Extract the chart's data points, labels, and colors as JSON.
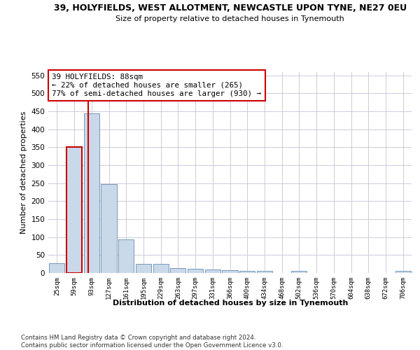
{
  "title1": "39, HOLYFIELDS, WEST ALLOTMENT, NEWCASTLE UPON TYNE, NE27 0EU",
  "title2": "Size of property relative to detached houses in Tynemouth",
  "xlabel": "Distribution of detached houses by size in Tynemouth",
  "ylabel": "Number of detached properties",
  "categories": [
    "25sqm",
    "59sqm",
    "93sqm",
    "127sqm",
    "161sqm",
    "195sqm",
    "229sqm",
    "263sqm",
    "297sqm",
    "331sqm",
    "366sqm",
    "400sqm",
    "434sqm",
    "468sqm",
    "502sqm",
    "536sqm",
    "570sqm",
    "604sqm",
    "638sqm",
    "672sqm",
    "706sqm"
  ],
  "values": [
    28,
    350,
    445,
    248,
    93,
    25,
    25,
    13,
    12,
    10,
    8,
    6,
    5,
    0,
    5,
    0,
    0,
    0,
    0,
    0,
    5
  ],
  "bar_color": "#c9d9ea",
  "bar_edge_color": "#7799bb",
  "highlight_bar_color": "#c9d9ea",
  "highlight_bar_edge_color": "#cc0000",
  "highlight_bar_index": 1,
  "highlight_color": "#cc0000",
  "property_line_x": 1.82,
  "annotation_text": "39 HOLYFIELDS: 88sqm\n← 22% of detached houses are smaller (265)\n77% of semi-detached houses are larger (930) →",
  "annotation_box_color": "#ffffff",
  "annotation_box_edge_color": "#cc0000",
  "ylim": [
    0,
    560
  ],
  "yticks": [
    0,
    50,
    100,
    150,
    200,
    250,
    300,
    350,
    400,
    450,
    500,
    550
  ],
  "footer": "Contains HM Land Registry data © Crown copyright and database right 2024.\nContains public sector information licensed under the Open Government Licence v3.0.",
  "background_color": "#ffffff",
  "grid_color": "#ccccdd"
}
